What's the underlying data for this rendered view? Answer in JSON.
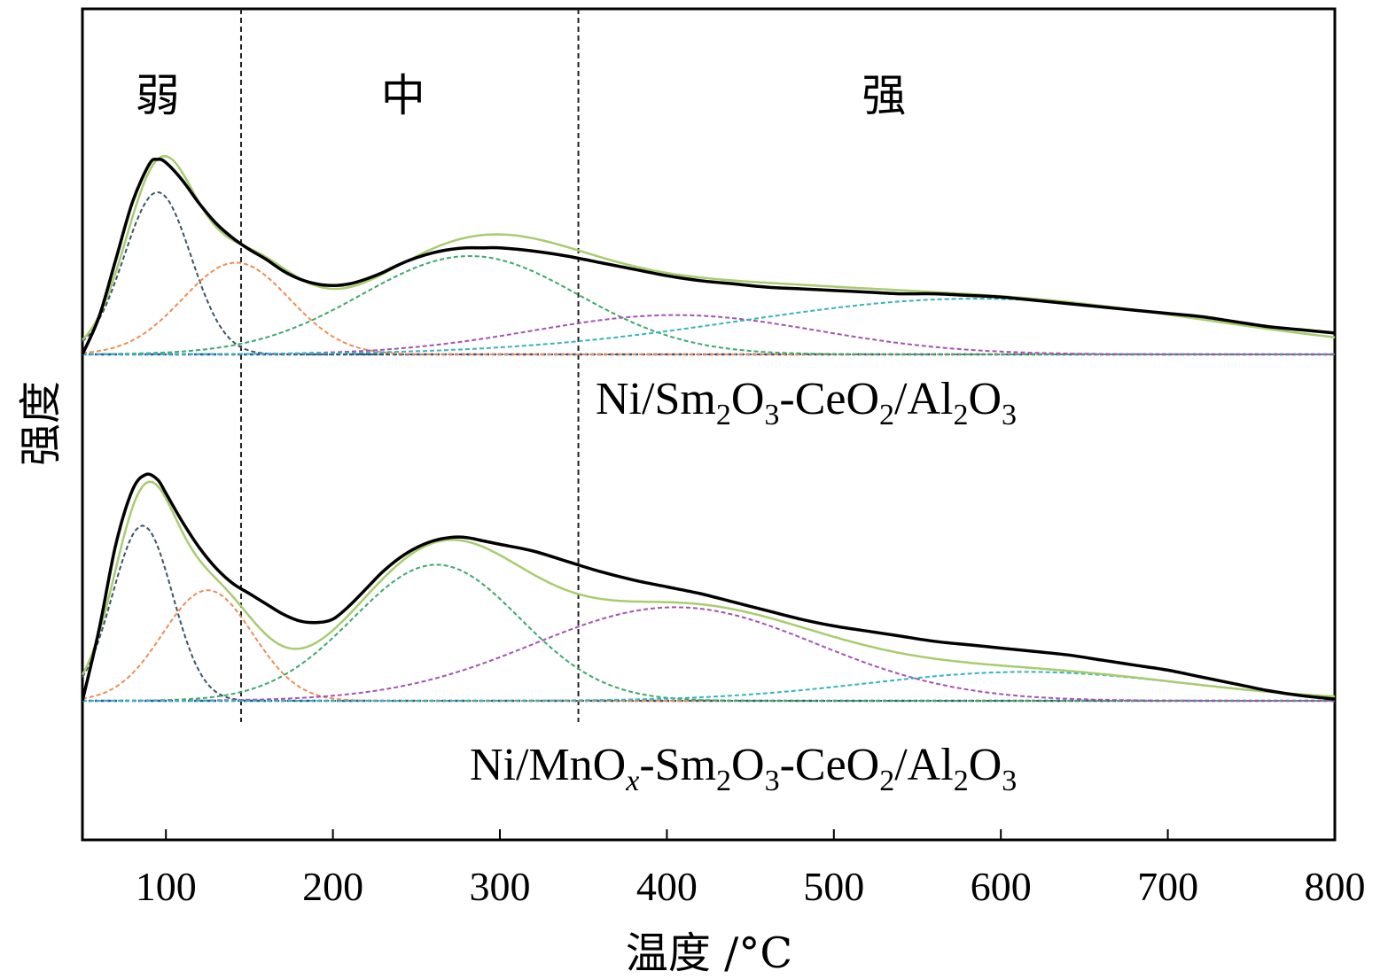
{
  "chart_data": {
    "type": "line",
    "xlabel": "温度 /°C",
    "ylabel": "强度",
    "xlim": [
      50,
      800
    ],
    "xticks": [
      100,
      200,
      300,
      400,
      500,
      600,
      700,
      800
    ],
    "region_boundaries": [
      145,
      347
    ],
    "regions": [
      {
        "label": "弱",
        "x": 95
      },
      {
        "label": "中",
        "x": 242
      },
      {
        "label": "强",
        "x": 530
      }
    ],
    "colors": {
      "measured": "#000000",
      "fit": "#a8cc6e",
      "peak1": "#3c5568",
      "peak2": "#f08c50",
      "peak3": "#3aaa6a",
      "peak4": "#a552b5",
      "peak5": "#35b5bd",
      "baseline": "#2c56a8"
    },
    "panels": [
      {
        "sample_name": "Ni/Sm2O3-CeO2/Al2O3",
        "sample_label_parts": [
          {
            "text": "Ni/Sm",
            "style": "normal"
          },
          {
            "text": "2",
            "style": "sub"
          },
          {
            "text": "O",
            "style": "normal"
          },
          {
            "text": "3",
            "style": "sub"
          },
          {
            "text": "-CeO",
            "style": "normal"
          },
          {
            "text": "2",
            "style": "sub"
          },
          {
            "text": "/Al",
            "style": "normal"
          },
          {
            "text": "2",
            "style": "sub"
          },
          {
            "text": "O",
            "style": "normal"
          },
          {
            "text": "3",
            "style": "sub"
          }
        ],
        "peaks": [
          {
            "name": "peak1",
            "center": 95,
            "height": 0.99,
            "sigma": 20
          },
          {
            "name": "peak2",
            "center": 142,
            "height": 0.56,
            "sigma": 32
          },
          {
            "name": "peak3",
            "center": 282,
            "height": 0.6,
            "sigma": 65
          },
          {
            "name": "peak4",
            "center": 405,
            "height": 0.24,
            "sigma": 85
          },
          {
            "name": "peak5",
            "center": 585,
            "height": 0.34,
            "sigma": 140
          }
        ],
        "measured_curve": {
          "x": [
            50,
            60,
            70,
            80,
            90,
            95,
            100,
            110,
            120,
            130,
            140,
            150,
            160,
            170,
            180,
            190,
            200,
            210,
            220,
            230,
            240,
            250,
            260,
            270,
            280,
            290,
            300,
            320,
            340,
            360,
            380,
            400,
            420,
            440,
            460,
            480,
            500,
            520,
            540,
            560,
            580,
            600,
            620,
            640,
            660,
            680,
            700,
            720,
            740,
            760,
            780,
            800
          ],
          "y": [
            0.0,
            0.23,
            0.58,
            0.93,
            1.16,
            1.19,
            1.17,
            1.06,
            0.92,
            0.8,
            0.71,
            0.64,
            0.58,
            0.51,
            0.46,
            0.43,
            0.42,
            0.43,
            0.46,
            0.5,
            0.55,
            0.59,
            0.62,
            0.64,
            0.65,
            0.65,
            0.65,
            0.63,
            0.6,
            0.56,
            0.52,
            0.48,
            0.45,
            0.43,
            0.41,
            0.4,
            0.39,
            0.38,
            0.37,
            0.37,
            0.36,
            0.35,
            0.33,
            0.31,
            0.29,
            0.27,
            0.25,
            0.23,
            0.2,
            0.17,
            0.15,
            0.13
          ]
        }
      },
      {
        "sample_name": "Ni/MnOx-Sm2O3-CeO2/Al2O3",
        "sample_label_parts": [
          {
            "text": "Ni/MnO",
            "style": "normal"
          },
          {
            "text": "x",
            "style": "sub-italic"
          },
          {
            "text": "-Sm",
            "style": "normal"
          },
          {
            "text": "2",
            "style": "sub"
          },
          {
            "text": "O",
            "style": "normal"
          },
          {
            "text": "3",
            "style": "sub"
          },
          {
            "text": "-CeO",
            "style": "normal"
          },
          {
            "text": "2",
            "style": "sub"
          },
          {
            "text": "/Al",
            "style": "normal"
          },
          {
            "text": "2",
            "style": "sub"
          },
          {
            "text": "O",
            "style": "normal"
          },
          {
            "text": "3",
            "style": "sub"
          }
        ],
        "peaks": [
          {
            "name": "peak1",
            "center": 86,
            "height": 1.03,
            "sigma": 18
          },
          {
            "name": "peak2",
            "center": 125,
            "height": 0.65,
            "sigma": 27
          },
          {
            "name": "peak3",
            "center": 262,
            "height": 0.8,
            "sigma": 50
          },
          {
            "name": "peak4",
            "center": 405,
            "height": 0.55,
            "sigma": 85
          },
          {
            "name": "peak5",
            "center": 615,
            "height": 0.17,
            "sigma": 95
          }
        ],
        "measured_curve": {
          "x": [
            50,
            60,
            70,
            80,
            88,
            95,
            100,
            110,
            120,
            130,
            140,
            150,
            160,
            170,
            180,
            190,
            200,
            210,
            220,
            230,
            240,
            250,
            260,
            270,
            280,
            290,
            300,
            320,
            340,
            360,
            380,
            400,
            420,
            440,
            460,
            480,
            500,
            520,
            540,
            560,
            580,
            600,
            620,
            640,
            660,
            680,
            700,
            720,
            740,
            760,
            780,
            800
          ],
          "y": [
            0.0,
            0.42,
            0.92,
            1.24,
            1.33,
            1.3,
            1.22,
            1.05,
            0.9,
            0.78,
            0.69,
            0.63,
            0.57,
            0.51,
            0.47,
            0.46,
            0.48,
            0.56,
            0.66,
            0.76,
            0.84,
            0.9,
            0.94,
            0.96,
            0.96,
            0.94,
            0.92,
            0.88,
            0.82,
            0.76,
            0.71,
            0.67,
            0.63,
            0.58,
            0.53,
            0.48,
            0.44,
            0.41,
            0.38,
            0.35,
            0.33,
            0.31,
            0.29,
            0.27,
            0.24,
            0.21,
            0.18,
            0.14,
            0.1,
            0.06,
            0.03,
            0.01
          ]
        }
      }
    ]
  }
}
